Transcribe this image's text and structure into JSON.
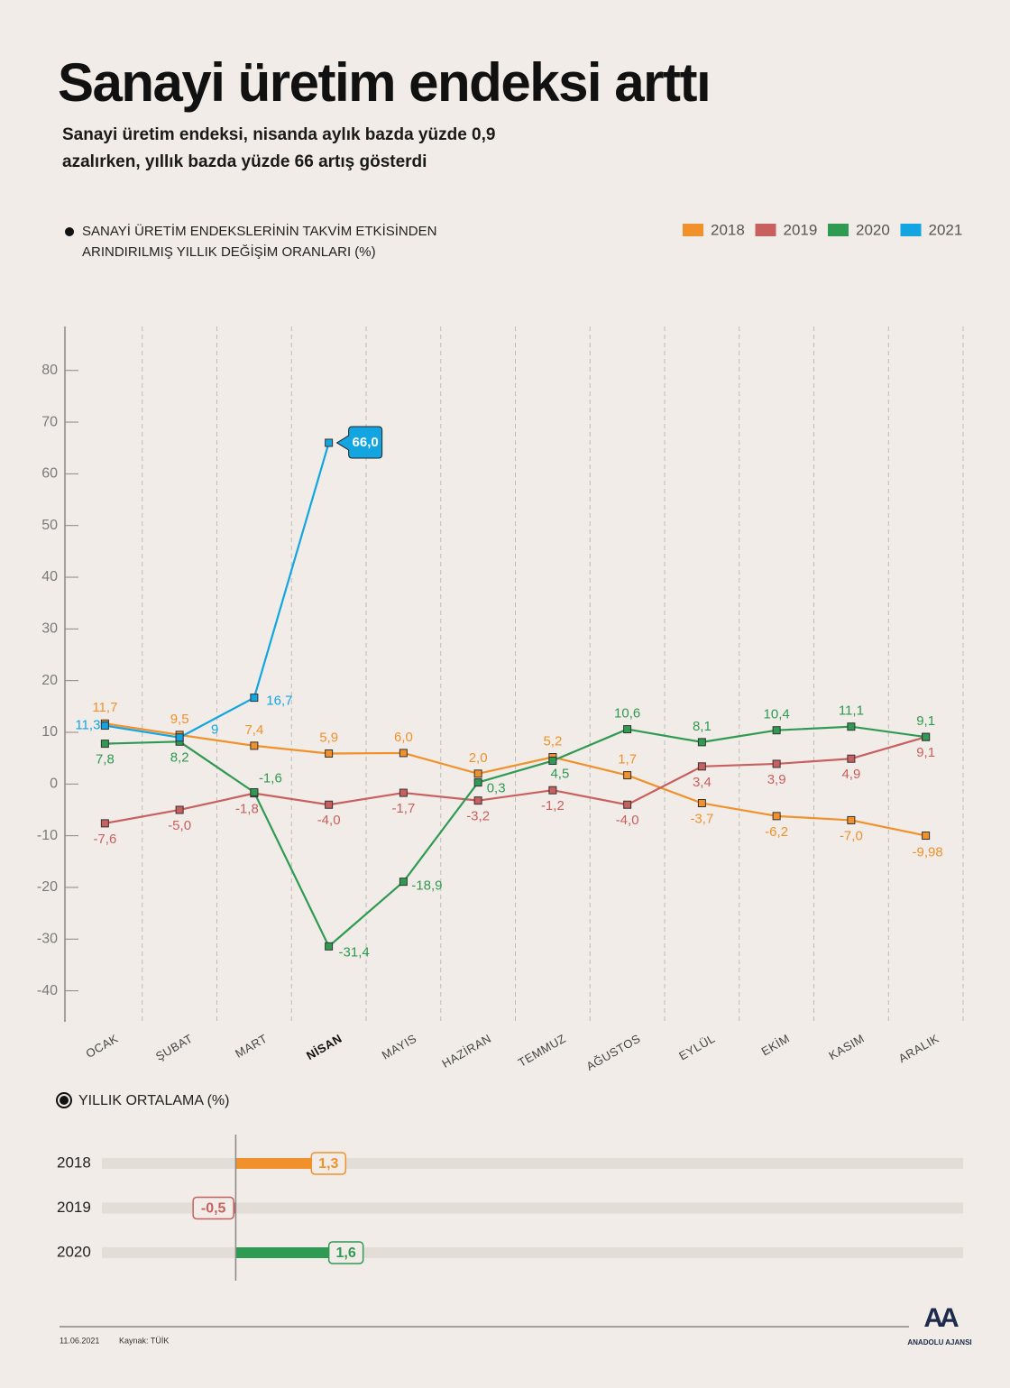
{
  "header": {
    "title": "Sanayi üretim endeksi arttı",
    "subtitle": [
      "Sanayi üretim endeksi, nisanda aylık bazda yüzde 0,9",
      "azalırken, yıllık bazda yüzde 66 artış gösterdi"
    ]
  },
  "chart_data": [
    {
      "type": "line",
      "title": [
        "SANAYİ ÜRETİM ENDEKSLERİNİN TAKVİM ETKİSİNDEN",
        "ARINDIRILMIŞ YILLIK DEĞİŞİM ORANLARI (%)"
      ],
      "categories": [
        "OCAK",
        "ŞUBAT",
        "MART",
        "NİSAN",
        "MAYIS",
        "HAZİRAN",
        "TEMMUZ",
        "AĞUSTOS",
        "EYLÜL",
        "EKİM",
        "KASIM",
        "ARALIK"
      ],
      "highlight": 3,
      "series": [
        {
          "name": "2018",
          "color": "#f0912c",
          "values": [
            11.7,
            9.5,
            7.4,
            5.9,
            6.0,
            2.0,
            5.2,
            1.7,
            -3.7,
            -6.2,
            -7.0,
            -9.98
          ],
          "value_labels": [
            "11,7",
            "9,5",
            "7,4",
            "5,9",
            "6,0",
            "2,0",
            "5,2",
            "1,7",
            "-3,7",
            "-6,2",
            "-7,0",
            "-9,98"
          ]
        },
        {
          "name": "2019",
          "color": "#c8605f",
          "values": [
            -7.6,
            -5.0,
            -1.8,
            -4.0,
            -1.7,
            -3.2,
            -1.2,
            -4.0,
            3.4,
            3.9,
            4.9,
            9.1
          ],
          "value_labels": [
            "-7,6",
            "-5,0",
            "-1,8",
            "-4,0",
            "-1,7",
            "-3,2",
            "-1,2",
            "-4,0",
            "3,4",
            "3,9",
            "4,9",
            "9,1"
          ]
        },
        {
          "name": "2020",
          "color": "#2f9a52",
          "values": [
            7.8,
            8.2,
            -1.6,
            -31.4,
            -18.9,
            0.3,
            4.5,
            10.6,
            8.1,
            10.4,
            11.1,
            9.1
          ],
          "value_labels": [
            "7,8",
            "8,2",
            "-1,6",
            "-31,4",
            "-18,9",
            "0,3",
            "4,5",
            "10,6",
            "8,1",
            "10,4",
            "11,1",
            "9,1"
          ]
        },
        {
          "name": "2021",
          "color": "#12a5e2",
          "values": [
            11.3,
            9,
            16.7,
            66.0,
            null,
            null,
            null,
            null,
            null,
            null,
            null,
            null
          ],
          "value_labels": [
            "11,3",
            "9",
            "16,7",
            "66,0",
            null,
            null,
            null,
            null,
            null,
            null,
            null,
            null
          ]
        }
      ],
      "ylim": [
        -46,
        88.5
      ],
      "yticks": [
        -40,
        -30,
        -20,
        -10,
        0,
        10,
        20,
        30,
        40,
        50,
        60,
        70,
        80
      ],
      "legend": "top-right"
    },
    {
      "type": "hbar",
      "title": "YILLIK ORTALAMA (%)",
      "categories": [
        "2018",
        "2019",
        "2020"
      ],
      "values": [
        1.3,
        -0.5,
        1.6
      ],
      "value_labels": [
        "1,3",
        "-0,5",
        "1,6"
      ],
      "colors": [
        "#f0912c",
        "#c8605f",
        "#2f9a52"
      ],
      "xlim": [
        -2.3,
        12.5
      ]
    }
  ],
  "footer": {
    "date": "11.06.2021",
    "source": "Kaynak: TÜİK",
    "brand": "ANADOLU AJANSI",
    "logo": "AA"
  }
}
